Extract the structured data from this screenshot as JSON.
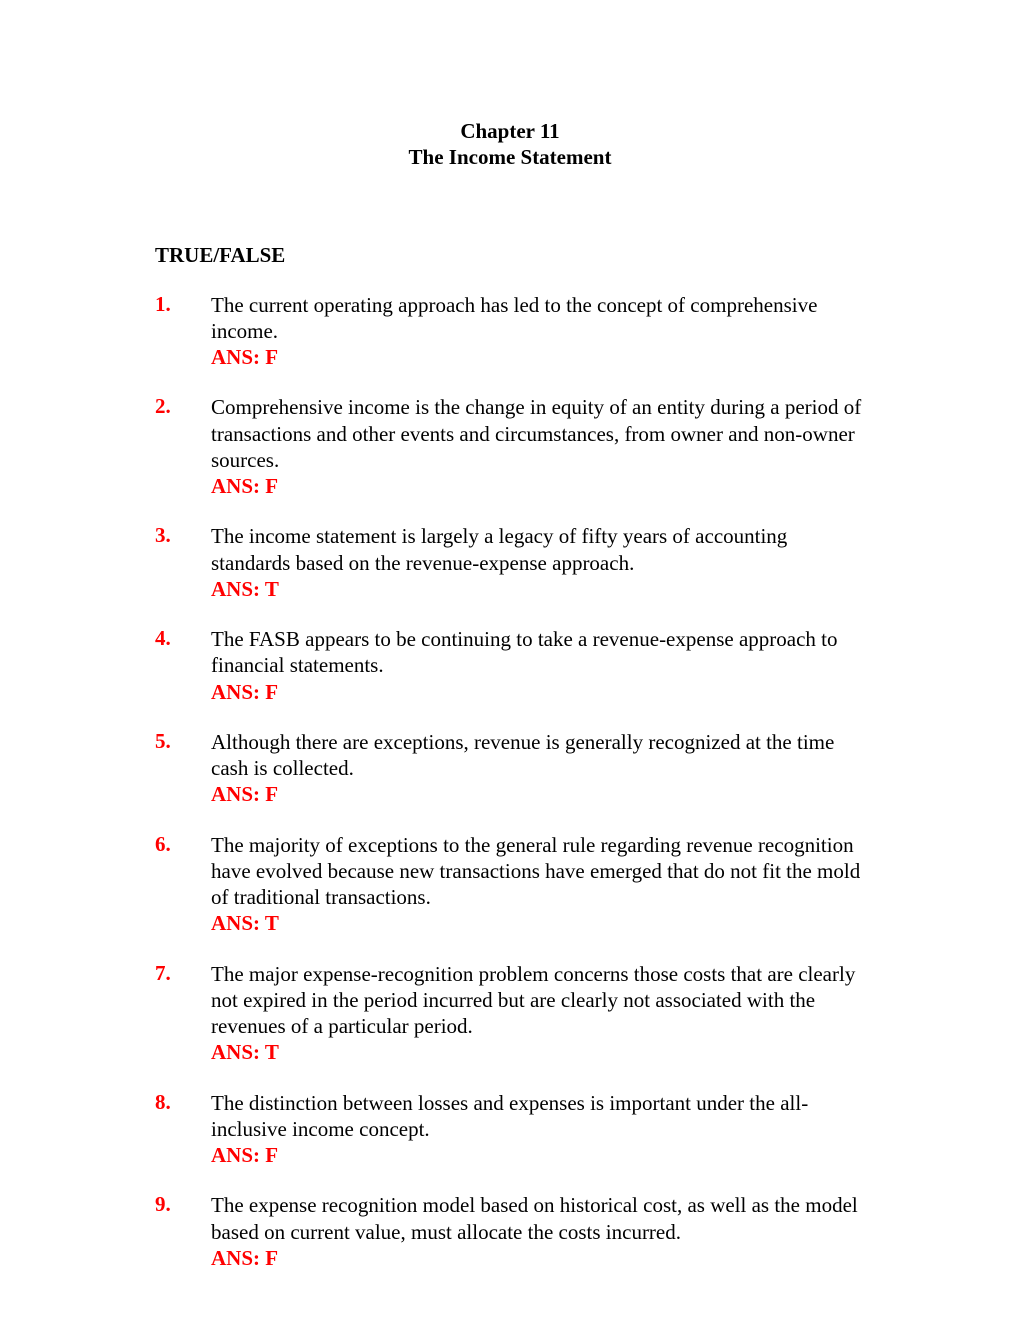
{
  "header": {
    "chapter": "Chapter 11",
    "title": "The Income Statement"
  },
  "section_heading": "TRUE/FALSE",
  "colors": {
    "text": "#000000",
    "accent": "#ff0000",
    "background": "#ffffff"
  },
  "typography": {
    "font_family": "Times New Roman",
    "body_fontsize": 21,
    "heading_fontsize": 21,
    "line_height": 1.25
  },
  "questions": [
    {
      "number": "1.",
      "text": "The current operating approach has led to the concept of comprehensive income.",
      "answer": "ANS: F"
    },
    {
      "number": "2.",
      "text": "Comprehensive income is the change in equity of an entity during a period of transactions and other events and circumstances, from owner and non-owner sources.",
      "answer": "ANS: F"
    },
    {
      "number": "3.",
      "text": "The income statement is largely a legacy of fifty years of accounting standards based on the revenue-expense approach.",
      "answer": "ANS: T"
    },
    {
      "number": "4.",
      "text": "The FASB appears to be continuing to take a revenue-expense approach to financial statements.",
      "answer": "ANS: F"
    },
    {
      "number": "5.",
      "text": "Although there are exceptions, revenue is generally recognized at the time cash is collected.",
      "answer": "ANS: F"
    },
    {
      "number": "6.",
      "text": "The majority of exceptions to the general rule regarding revenue recognition have evolved because new transactions have emerged that do not fit the mold of traditional transactions.",
      "answer": "ANS: T"
    },
    {
      "number": "7.",
      "text": "The major expense-recognition problem concerns those costs that are clearly not expired in the period incurred but are clearly not associated with the revenues of a particular period.",
      "answer": "ANS: T"
    },
    {
      "number": "8.",
      "text": "The distinction between losses and expenses is important under the all-inclusive income concept.",
      "answer": "ANS: F"
    },
    {
      "number": "9.",
      "text": "The expense recognition model based on historical cost, as well as the model based on current value, must allocate the costs incurred.",
      "answer": "ANS: F"
    }
  ]
}
